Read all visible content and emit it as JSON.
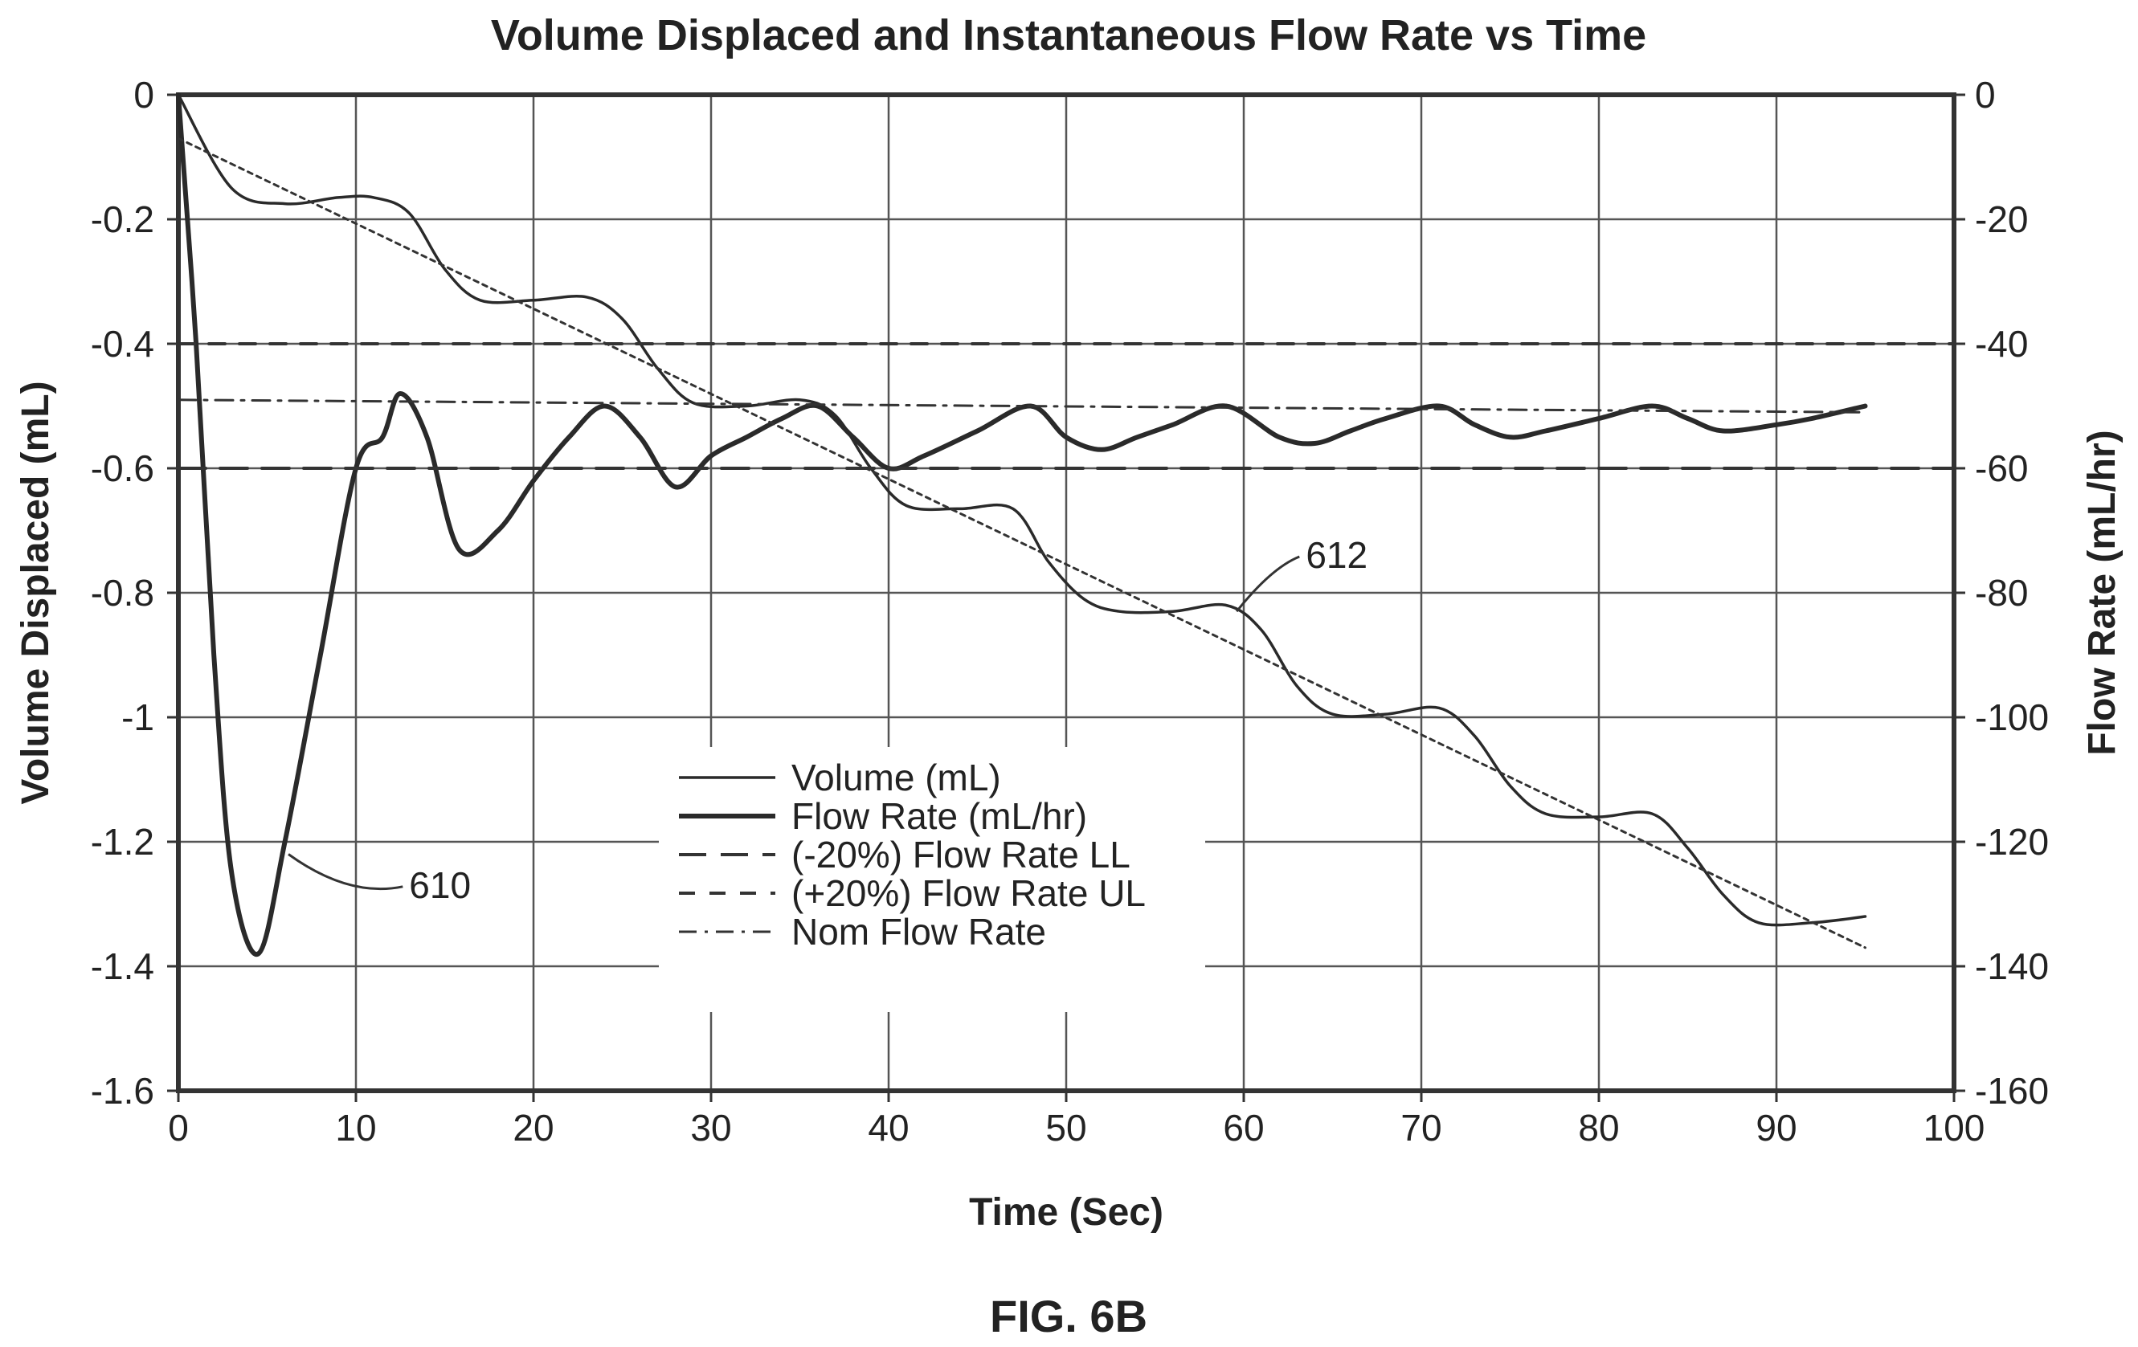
{
  "chart_data": {
    "type": "line",
    "title": "Volume Displaced and Instantaneous Flow Rate vs Time",
    "xlabel": "Time (Sec)",
    "ylabel_left": "Volume Displaced (mL)",
    "ylabel_right": "Flow Rate (mL/hr)",
    "xlim": [
      0,
      100
    ],
    "ylim_left": [
      -1.6,
      0
    ],
    "ylim_right": [
      -160,
      0
    ],
    "x_ticks": [
      "0",
      "10",
      "20",
      "30",
      "40",
      "50",
      "60",
      "70",
      "80",
      "90",
      "100"
    ],
    "y_left_ticks": [
      "0",
      "-0.2",
      "-0.4",
      "-0.6",
      "-0.8",
      "-1",
      "-1.2",
      "-1.4",
      "-1.6"
    ],
    "y_right_ticks": [
      "0",
      "-20",
      "-40",
      "-60",
      "-80",
      "-100",
      "-120",
      "-140",
      "-160"
    ],
    "grid": true,
    "legend": "center",
    "series": [
      {
        "name": "Volume (mL)",
        "axis": "left",
        "style": "solid",
        "x": [
          0,
          3,
          6,
          9,
          11,
          13,
          15,
          17,
          20,
          23,
          25,
          27,
          29,
          32,
          35,
          37,
          39,
          41,
          44,
          47,
          49,
          51,
          53,
          56,
          59,
          61,
          63,
          65,
          68,
          71,
          73,
          75,
          77,
          80,
          83,
          85,
          87,
          89,
          92,
          95
        ],
        "y": [
          0,
          -0.15,
          -0.175,
          -0.165,
          -0.165,
          -0.19,
          -0.28,
          -0.33,
          -0.33,
          -0.325,
          -0.36,
          -0.44,
          -0.495,
          -0.5,
          -0.49,
          -0.515,
          -0.6,
          -0.66,
          -0.665,
          -0.665,
          -0.75,
          -0.81,
          -0.83,
          -0.83,
          -0.82,
          -0.86,
          -0.95,
          -0.995,
          -0.995,
          -0.985,
          -1.03,
          -1.11,
          -1.155,
          -1.16,
          -1.155,
          -1.21,
          -1.285,
          -1.33,
          -1.33,
          -1.32
        ]
      },
      {
        "name": "Flow Rate (mL/hr)",
        "axis": "right",
        "style": "solid-thick",
        "x": [
          0,
          1,
          2,
          3,
          4.5,
          6,
          8,
          10,
          11.5,
          12.5,
          14,
          15.8,
          18,
          20,
          22,
          24,
          26,
          28,
          30,
          32,
          34,
          36,
          38,
          40,
          42,
          45,
          48,
          50,
          52,
          54,
          56,
          59,
          62,
          64,
          66,
          68,
          71,
          73,
          75,
          77,
          80,
          83,
          85,
          87,
          90,
          92,
          95
        ],
        "y": [
          0,
          -40,
          -90,
          -125,
          -138,
          -120,
          -90,
          -60,
          -55,
          -48,
          -55,
          -73,
          -70,
          -62,
          -55,
          -50,
          -55,
          -63,
          -58,
          -55,
          -52,
          -50,
          -55,
          -60,
          -58,
          -54,
          -50,
          -55,
          -57,
          -55,
          -53,
          -50,
          -55,
          -56,
          -54,
          -52,
          -50,
          -53,
          -55,
          -54,
          -52,
          -50,
          -52,
          -54,
          -53,
          -52,
          -50
        ]
      },
      {
        "name": "(-20%) Flow Rate LL",
        "axis": "right",
        "style": "long-dash",
        "x": [
          0,
          100
        ],
        "y": [
          -60,
          -60
        ]
      },
      {
        "name": "(+20%) Flow Rate UL",
        "axis": "right",
        "style": "dash",
        "x": [
          0,
          100
        ],
        "y": [
          -40,
          -40
        ]
      },
      {
        "name": "Nom Flow Rate",
        "axis": "right",
        "style": "dash-dot",
        "x": [
          0,
          95
        ],
        "y": [
          -49,
          -51
        ]
      },
      {
        "name": "",
        "axis": "left",
        "style": "dotted",
        "x": [
          0,
          95
        ],
        "y": [
          -0.07,
          -1.37
        ]
      }
    ],
    "annotations": [
      {
        "label": "610",
        "x": 13,
        "y_left": -1.29,
        "target_x": 6.2,
        "target_y_left": -1.22
      },
      {
        "label": "612",
        "x": 63.5,
        "y_left": -0.76,
        "target_x": 59.6,
        "target_y_left": -0.83
      }
    ]
  },
  "figure_label": "FIG. 6B"
}
